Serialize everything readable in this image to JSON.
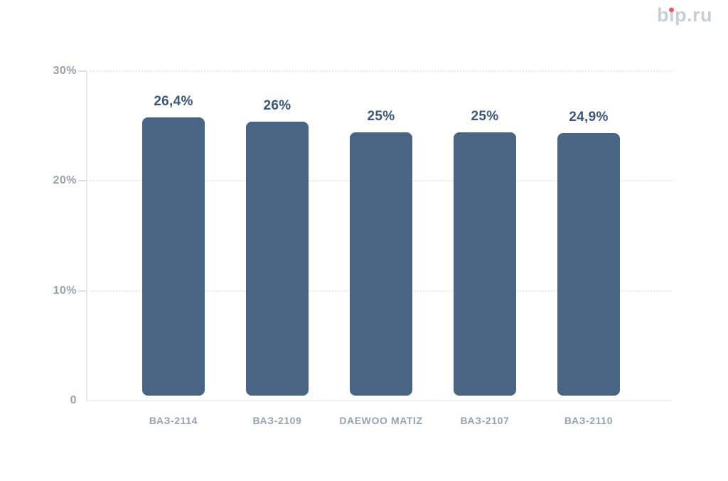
{
  "logo": {
    "text": "bip.ru",
    "b": "b",
    "i": "i",
    "rest": "p.ru",
    "gray_color": "#c9cdd5",
    "dot_color": "#f4525c"
  },
  "chart_data": {
    "type": "bar",
    "title": "",
    "categories": [
      "ВАЗ-2114",
      "ВАЗ-2109",
      "DAEWOO MATIZ",
      "ВАЗ-2107",
      "ВАЗ-2110"
    ],
    "values": [
      26.4,
      26,
      25,
      25,
      24.9
    ],
    "value_labels": [
      "26,4%",
      "26%",
      "25%",
      "25%",
      "24,9%"
    ],
    "yticks": [
      {
        "label": "30%",
        "value": 30
      },
      {
        "label": "20%",
        "value": 20
      },
      {
        "label": "10%",
        "value": 10
      },
      {
        "label": "0",
        "value": 0
      }
    ],
    "ylim": [
      0,
      30
    ],
    "xlabel": "",
    "ylabel": "",
    "grid": true,
    "legend": false,
    "bar_color": "#4a6484",
    "value_label_color": "#3a567e",
    "axis_label_color": "#9aa1ad"
  }
}
